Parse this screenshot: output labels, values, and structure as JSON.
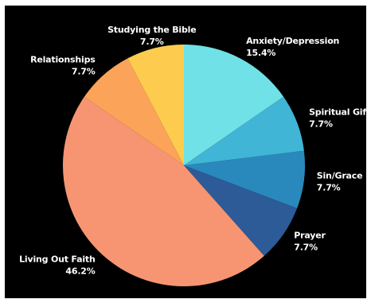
{
  "chart_data": {
    "type": "pie",
    "title": "",
    "start_angle_deg": 0,
    "direction": "clockwise",
    "slices": [
      {
        "label": "Anxiety/Depression",
        "value": 15.4,
        "display": "15.4%",
        "color": "#70E1E6"
      },
      {
        "label": "Spiritual Gifts",
        "value": 7.7,
        "display": "7.7%",
        "color": "#40B5D6"
      },
      {
        "label": "Sin/Grace",
        "value": 7.7,
        "display": "7.7%",
        "color": "#2A89BC"
      },
      {
        "label": "Prayer",
        "value": 7.7,
        "display": "7.7%",
        "color": "#2C5B98"
      },
      {
        "label": "Living Out Faith",
        "value": 46.2,
        "display": "46.2%",
        "color": "#F79572"
      },
      {
        "label": "Relationships",
        "value": 7.7,
        "display": "7.7%",
        "color": "#FBA459"
      },
      {
        "label": "Studying the Bible",
        "value": 7.7,
        "display": "7.7%",
        "color": "#FDCC4E"
      }
    ],
    "background": "#000000",
    "label_color": "#FFFFFF"
  }
}
